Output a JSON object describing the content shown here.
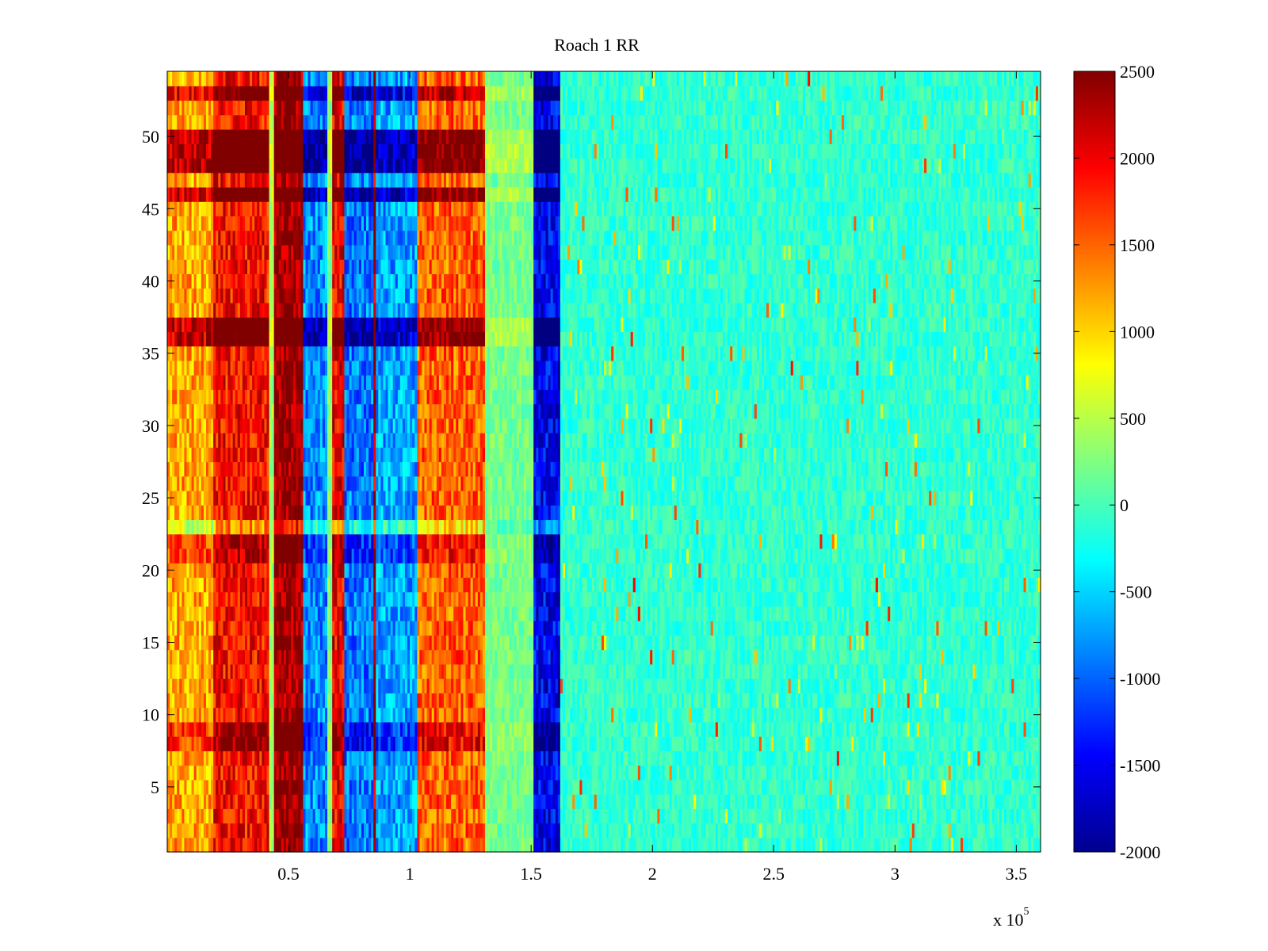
{
  "chart_data": {
    "type": "heatmap",
    "title": "Roach 1 RR",
    "xlabel": "",
    "ylabel": "",
    "x_exponent_label": {
      "base": "x 10",
      "power": "5"
    },
    "xlim": [
      0,
      3.6
    ],
    "ylim": [
      0.5,
      54.5
    ],
    "x_ticks": [
      0.5,
      1,
      1.5,
      2,
      2.5,
      3,
      3.5
    ],
    "x_tick_labels": [
      "0.5",
      "1",
      "1.5",
      "2",
      "2.5",
      "3",
      "3.5"
    ],
    "y_ticks": [
      5,
      10,
      15,
      20,
      25,
      30,
      35,
      40,
      45,
      50
    ],
    "y_tick_labels": [
      "5",
      "10",
      "15",
      "20",
      "25",
      "30",
      "35",
      "40",
      "45",
      "50"
    ],
    "rows": 54,
    "colormap": "jet",
    "clim": [
      -2000,
      2500
    ],
    "colorbar_ticks": [
      2500,
      2000,
      1500,
      1000,
      500,
      0,
      -500,
      -1000,
      -1500,
      -2000
    ],
    "colorbar_tick_labels": [
      "2500",
      "2000",
      "1500",
      "1000",
      "500",
      "0",
      "-500",
      "-1000",
      "-1500",
      "-2000"
    ],
    "column_bands": [
      {
        "x_range": [
          0.0,
          0.19
        ],
        "value": 1200
      },
      {
        "x_range": [
          0.19,
          0.42
        ],
        "value": 1900
      },
      {
        "x_range": [
          0.42,
          0.44
        ],
        "value": 400
      },
      {
        "x_range": [
          0.44,
          0.56
        ],
        "value": 2400
      },
      {
        "x_range": [
          0.56,
          0.66
        ],
        "value": -800
      },
      {
        "x_range": [
          0.66,
          0.68
        ],
        "value": 300
      },
      {
        "x_range": [
          0.68,
          0.73
        ],
        "value": 2000
      },
      {
        "x_range": [
          0.73,
          0.85
        ],
        "value": -900
      },
      {
        "x_range": [
          0.85,
          0.86
        ],
        "value": 2200
      },
      {
        "x_range": [
          0.86,
          1.03
        ],
        "value": -700
      },
      {
        "x_range": [
          1.03,
          1.31
        ],
        "value": 1500
      },
      {
        "x_range": [
          1.31,
          1.51
        ],
        "value": 200
      },
      {
        "x_range": [
          1.51,
          1.62
        ],
        "value": -1500
      },
      {
        "x_range": [
          1.62,
          3.6
        ],
        "value": -100
      }
    ],
    "row_bands": [
      {
        "y_range": [
          47.5,
          50.5
        ],
        "effect": 1100
      },
      {
        "y_range": [
          45.5,
          46.5
        ],
        "effect": 1000
      },
      {
        "y_range": [
          35.5,
          37.5
        ],
        "effect": 1000
      },
      {
        "y_range": [
          52.5,
          53.5
        ],
        "effect": 800
      },
      {
        "y_range": [
          7.5,
          9.5
        ],
        "effect": 500
      },
      {
        "y_range": [
          20.5,
          22.5
        ],
        "effect": 400
      },
      {
        "y_range": [
          22.5,
          23.5
        ],
        "effect": -600
      }
    ]
  },
  "colors": {
    "background": "#ffffff",
    "axes": "#000000"
  }
}
